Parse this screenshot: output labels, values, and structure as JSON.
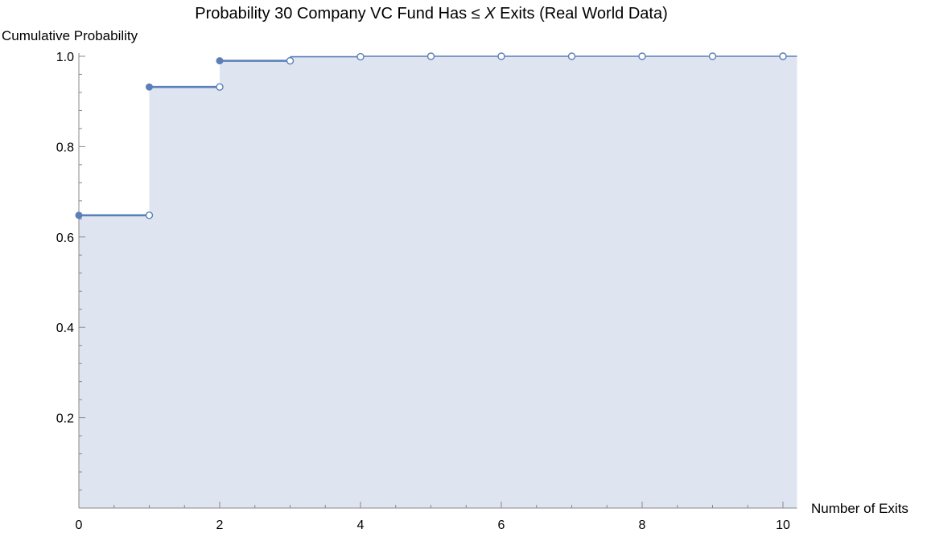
{
  "chart_data": {
    "type": "line",
    "step": true,
    "title_parts": {
      "prefix": "Probability 30 Company VC Fund Has ≤ ",
      "variable": "X",
      "suffix": " Exits (Real World Data)"
    },
    "xlabel": "Number of Exits",
    "ylabel": "Cumulative Probability",
    "xlim": [
      0,
      10.2
    ],
    "ylim": [
      0,
      1.0
    ],
    "x_ticks": [
      0,
      2,
      4,
      6,
      8,
      10
    ],
    "x_tick_labels": [
      "0",
      "2",
      "4",
      "6",
      "8",
      "10"
    ],
    "y_ticks": [
      0.2,
      0.4,
      0.6,
      0.8,
      1.0
    ],
    "y_tick_labels": [
      "0.2",
      "0.4",
      "0.6",
      "0.8",
      "1.0"
    ],
    "grid": false,
    "filled": true,
    "x": [
      0,
      1,
      2,
      3,
      4,
      5,
      6,
      7,
      8,
      9,
      10
    ],
    "values": [
      0.648,
      0.932,
      0.99,
      0.999,
      1.0,
      1.0,
      1.0,
      1.0,
      1.0,
      1.0,
      1.0
    ],
    "colors": {
      "line": "#5b7fb8",
      "fill": "#dfe5f0"
    }
  }
}
